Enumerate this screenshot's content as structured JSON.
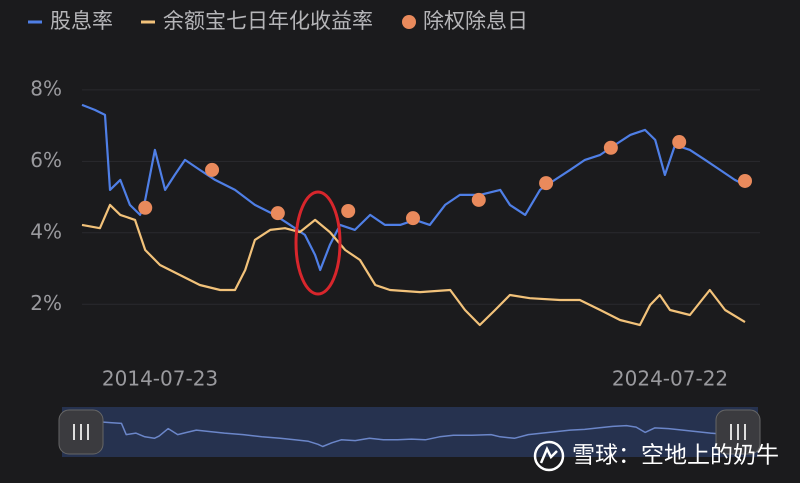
{
  "chart_data": {
    "type": "line",
    "xlim": [
      2013.03,
      2026.03
    ],
    "xticks": [
      {
        "value": 2014.56,
        "label": "2014-07-23"
      },
      {
        "value": 2024.56,
        "label": "2024-07-22"
      }
    ],
    "ylim": [
      1,
      8.5
    ],
    "yticks": [
      {
        "value": 2,
        "label": "2%"
      },
      {
        "value": 4,
        "label": "4%"
      },
      {
        "value": 6,
        "label": "6%"
      },
      {
        "value": 8,
        "label": "8%"
      }
    ],
    "grid": true,
    "series": [
      {
        "name": "股息率",
        "type": "line",
        "color": "#4f7fe6",
        "x": [
          2013.03,
          2013.28,
          2013.48,
          2013.58,
          2013.78,
          2013.97,
          2014.17,
          2014.27,
          2014.46,
          2014.66,
          2014.85,
          2015.05,
          2015.34,
          2015.64,
          2016.03,
          2016.42,
          2016.81,
          2017.11,
          2017.4,
          2017.6,
          2017.7,
          2017.89,
          2018.09,
          2018.38,
          2018.68,
          2018.97,
          2019.27,
          2019.56,
          2019.85,
          2020.15,
          2020.44,
          2020.83,
          2021.23,
          2021.42,
          2021.72,
          2022.01,
          2022.3,
          2022.6,
          2022.89,
          2023.19,
          2023.48,
          2023.78,
          2024.07,
          2024.27,
          2024.46,
          2024.66,
          2024.95,
          2025.25,
          2025.54,
          2025.83,
          2026.03
        ],
        "values": [
          7.58,
          7.44,
          7.3,
          5.2,
          5.48,
          4.78,
          4.5,
          4.92,
          6.32,
          5.2,
          5.62,
          6.04,
          5.76,
          5.48,
          5.2,
          4.78,
          4.5,
          4.22,
          3.94,
          3.38,
          2.96,
          3.66,
          4.22,
          4.08,
          4.5,
          4.22,
          4.22,
          4.36,
          4.22,
          4.78,
          5.06,
          5.06,
          5.2,
          4.78,
          4.5,
          5.2,
          5.48,
          5.76,
          6.04,
          6.18,
          6.46,
          6.74,
          6.88,
          6.6,
          5.62,
          6.46,
          6.32,
          6.04,
          5.76,
          5.48,
          5.34
        ]
      },
      {
        "name": "余额宝七日年化收益率",
        "type": "line",
        "color": "#f2c27a",
        "x": [
          2013.03,
          2013.38,
          2013.58,
          2013.78,
          2014.07,
          2014.27,
          2014.56,
          2014.95,
          2015.34,
          2015.74,
          2016.03,
          2016.23,
          2016.42,
          2016.72,
          2017.01,
          2017.3,
          2017.6,
          2017.89,
          2018.19,
          2018.48,
          2018.78,
          2019.07,
          2019.66,
          2020.25,
          2020.54,
          2020.83,
          2021.13,
          2021.42,
          2021.81,
          2022.4,
          2022.79,
          2023.19,
          2023.58,
          2023.97,
          2024.17,
          2024.36,
          2024.56,
          2024.95,
          2025.34,
          2025.64,
          2026.03
        ],
        "values": [
          4.22,
          4.13,
          4.78,
          4.5,
          4.36,
          3.52,
          3.1,
          2.82,
          2.54,
          2.4,
          2.4,
          2.96,
          3.8,
          4.08,
          4.13,
          4.02,
          4.36,
          4.02,
          3.52,
          3.24,
          2.54,
          2.4,
          2.34,
          2.4,
          1.84,
          1.42,
          1.84,
          2.26,
          2.17,
          2.12,
          2.12,
          1.84,
          1.56,
          1.42,
          1.98,
          2.26,
          1.84,
          1.7,
          2.4,
          1.84,
          1.5
        ]
      },
      {
        "name": "除权除息日",
        "type": "scatter",
        "color": "#e98a5c",
        "x": [
          2014.27,
          2015.58,
          2016.87,
          2018.25,
          2019.52,
          2020.81,
          2022.13,
          2023.4,
          2024.74,
          2026.03
        ],
        "values": [
          4.7,
          5.76,
          4.55,
          4.61,
          4.41,
          4.92,
          5.39,
          6.38,
          6.54,
          5.45
        ]
      }
    ],
    "watermark": "雪球：空地上的奶牛"
  }
}
